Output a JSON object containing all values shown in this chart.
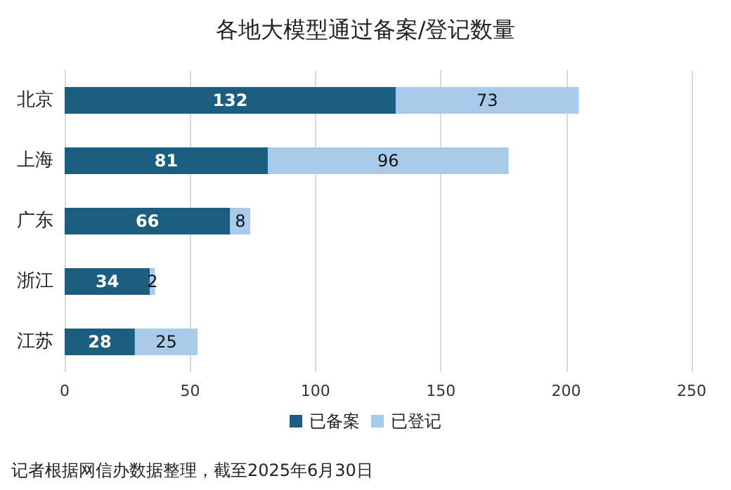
{
  "chart_data": {
    "type": "bar",
    "orientation": "horizontal",
    "stacked": true,
    "title": "各地大模型通过备案/登记数量",
    "categories": [
      "北京",
      "上海",
      "广东",
      "浙江",
      "江苏"
    ],
    "series": [
      {
        "name": "已备案",
        "color": "#1b5e80",
        "values": [
          132,
          81,
          66,
          34,
          28
        ]
      },
      {
        "name": "已登记",
        "color": "#a8cbec",
        "values": [
          73,
          96,
          8,
          2,
          25
        ]
      }
    ],
    "xlim": [
      0,
      250
    ],
    "xticks": [
      0,
      50,
      100,
      150,
      200,
      250
    ],
    "grid": "x",
    "legend": "bottom",
    "data_labels": true,
    "annotations": [
      "记者根据网信办数据整理，截至2025年6月30日"
    ]
  }
}
